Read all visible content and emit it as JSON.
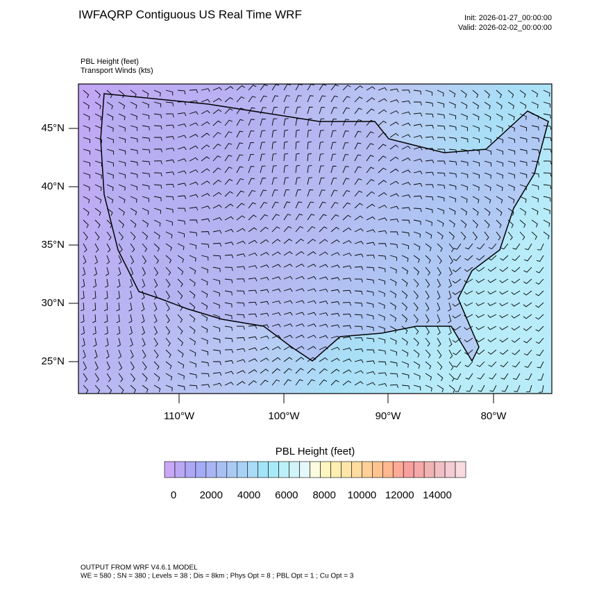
{
  "title": "IWFAQRP Contiguous US Real Time WRF",
  "init": "Init: 2026-01-27_00:00:00",
  "valid": "Valid: 2026-02-02_00:00:00",
  "field_labels": [
    "PBL Height   (feet)",
    "Transport Winds   (kts)"
  ],
  "lat_labels": [
    "45°N",
    "40°N",
    "35°N",
    "30°N",
    "25°N"
  ],
  "lon_labels": [
    "110°W",
    "100°W",
    "90°W",
    "80°W"
  ],
  "colorbar": {
    "title": "PBL Height  (feet)",
    "ticks": [
      0,
      2000,
      4000,
      6000,
      8000,
      10000,
      12000,
      14000
    ],
    "colors": [
      "#c9a8f5",
      "#bba8f5",
      "#ada8f5",
      "#a5acf5",
      "#a8b6f3",
      "#a8c0f3",
      "#a8caf3",
      "#a8d2f5",
      "#a8dcf7",
      "#a3e4f8",
      "#a8ebf8",
      "#bcf0f8",
      "#d0f4f8",
      "#e6f8fa",
      "#fcfce0",
      "#fff5c0",
      "#ffeeb0",
      "#ffe6a8",
      "#ffdca0",
      "#ffd098",
      "#ffc490",
      "#ffb890",
      "#ffaa98",
      "#f8a0a0",
      "#f4a8a8",
      "#f0b4b4",
      "#f0c0c4",
      "#f4ccd4",
      "#f8dce0"
    ]
  },
  "footer": [
    "OUTPUT FROM WRF V4.6.1 MODEL",
    "WE = 580 ; SN = 380 ; Levels = 38 ; Dis = 8km ; Phys Opt = 8 ; PBL Opt = 1 ; Cu Opt = 3"
  ]
}
